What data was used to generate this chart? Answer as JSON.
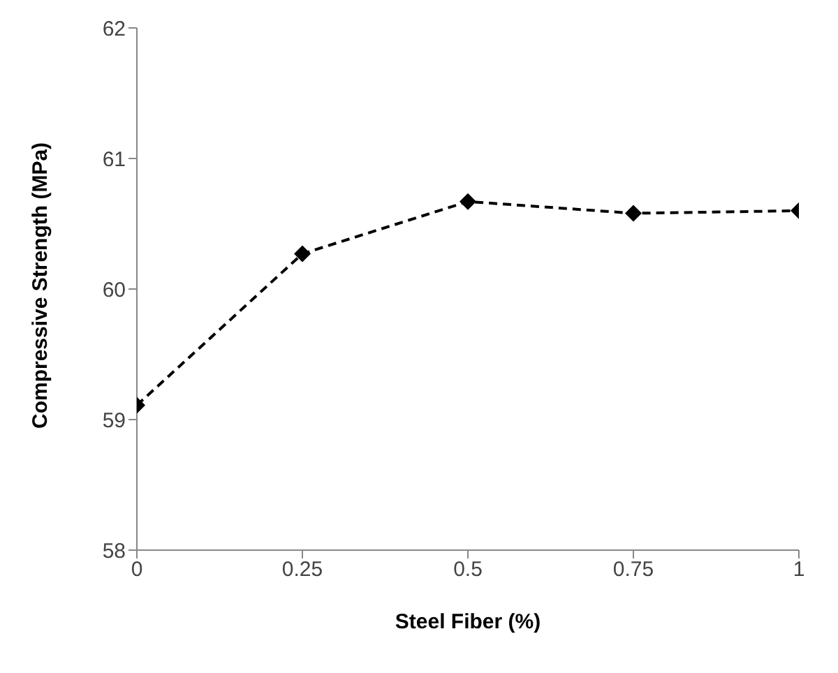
{
  "chart_data": {
    "type": "line",
    "xlabel": "Steel Fiber (%)",
    "ylabel": "Compressive Strength (MPa)",
    "x": [
      0,
      0.25,
      0.5,
      0.75,
      1
    ],
    "series": [
      {
        "color": "#000000",
        "values": [
          59.11,
          60.27,
          60.67,
          60.58,
          60.6
        ]
      }
    ],
    "xlim": [
      0,
      1
    ],
    "xticks": [
      0,
      0.25,
      0.5,
      0.75,
      1
    ],
    "ylim": [
      58,
      62
    ],
    "yticks": [
      58,
      59,
      60,
      61,
      62
    ],
    "grid": false,
    "legend": false,
    "marker": "diamond",
    "line_style": "dashed"
  }
}
